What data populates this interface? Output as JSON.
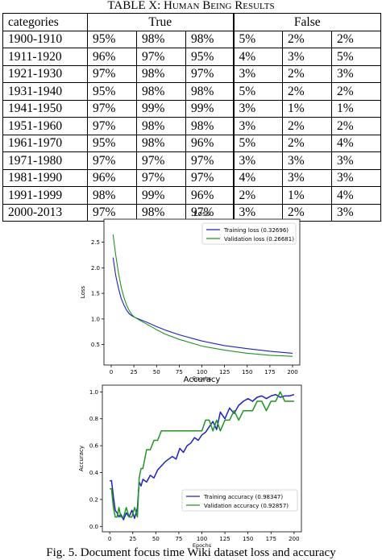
{
  "table": {
    "caption": "TABLE X: Human Being Results",
    "header": [
      "categories",
      "True",
      "False"
    ],
    "rows": [
      [
        "1900-1910",
        "95%",
        "98%",
        "98%",
        "5%",
        "2%",
        "2%"
      ],
      [
        "1911-1920",
        "96%",
        "97%",
        "95%",
        "4%",
        "3%",
        "5%"
      ],
      [
        "1921-1930",
        "97%",
        "98%",
        "97%",
        "3%",
        "2%",
        "3%"
      ],
      [
        "1931-1940",
        "95%",
        "98%",
        "98%",
        "5%",
        "2%",
        "2%"
      ],
      [
        "1941-1950",
        "97%",
        "99%",
        "99%",
        "3%",
        "1%",
        "1%"
      ],
      [
        "1951-1960",
        "97%",
        "98%",
        "98%",
        "3%",
        "2%",
        "2%"
      ],
      [
        "1961-1970",
        "95%",
        "98%",
        "96%",
        "5%",
        "2%",
        "4%"
      ],
      [
        "1971-1980",
        "97%",
        "97%",
        "97%",
        "3%",
        "3%",
        "3%"
      ],
      [
        "1981-1990",
        "96%",
        "97%",
        "97%",
        "4%",
        "3%",
        "3%"
      ],
      [
        "1991-1999",
        "98%",
        "99%",
        "96%",
        "2%",
        "1%",
        "4%"
      ],
      [
        "2000-2013",
        "97%",
        "98%",
        "97%",
        "3%",
        "2%",
        "3%"
      ]
    ]
  },
  "chart_data": [
    {
      "type": "line",
      "title": "Loss",
      "xlabel": "Epochs",
      "ylabel": "Loss",
      "xlim": [
        -8,
        208
      ],
      "ylim": [
        0.1,
        2.95
      ],
      "xticks": [
        0,
        25,
        50,
        75,
        100,
        125,
        150,
        175,
        200
      ],
      "yticks": [
        0.5,
        1.0,
        1.5,
        2.0,
        2.5
      ],
      "ytick_labels": [
        "0.5",
        "1.0",
        "1.5",
        "2.0",
        "2.5"
      ],
      "legend_position": "top-right",
      "series": [
        {
          "name": "Training loss (0.32696)",
          "color": "#1f1fd0",
          "x": [
            2,
            5,
            8,
            11,
            14,
            17,
            20,
            23,
            26,
            30,
            40,
            50,
            60,
            75,
            100,
            125,
            150,
            175,
            200
          ],
          "y": [
            2.2,
            1.85,
            1.6,
            1.4,
            1.27,
            1.17,
            1.1,
            1.06,
            1.03,
            1.0,
            0.93,
            0.85,
            0.78,
            0.69,
            0.57,
            0.48,
            0.42,
            0.37,
            0.33
          ]
        },
        {
          "name": "Validation loss (0.26681)",
          "color": "#1a9a1a",
          "x": [
            2,
            5,
            8,
            11,
            14,
            17,
            20,
            23,
            26,
            30,
            40,
            50,
            60,
            75,
            100,
            125,
            150,
            175,
            200
          ],
          "y": [
            2.65,
            2.25,
            1.9,
            1.62,
            1.42,
            1.27,
            1.16,
            1.08,
            1.03,
            0.99,
            0.89,
            0.79,
            0.7,
            0.6,
            0.47,
            0.39,
            0.33,
            0.29,
            0.27
          ]
        }
      ]
    },
    {
      "type": "line",
      "title": "Accuracy",
      "xlabel": "Epochs",
      "ylabel": "Accuracy",
      "xlim": [
        -8,
        208
      ],
      "ylim": [
        -0.04,
        1.05
      ],
      "xticks": [
        0,
        25,
        50,
        75,
        100,
        125,
        150,
        175,
        200
      ],
      "yticks": [
        0.0,
        0.2,
        0.4,
        0.6,
        0.8,
        1.0
      ],
      "ytick_labels": [
        "0.0",
        "0.2",
        "0.4",
        "0.6",
        "0.8",
        "1.0"
      ],
      "legend_position": "bottom-right",
      "series": [
        {
          "name": "Training accuracy (0.98347)",
          "color": "#1f1fd0",
          "x": [
            0,
            2,
            4,
            6,
            8,
            10,
            12,
            15,
            18,
            21,
            24,
            27,
            30,
            32,
            34,
            36,
            40,
            44,
            48,
            52,
            56,
            60,
            64,
            68,
            72,
            76,
            80,
            84,
            88,
            92,
            96,
            100,
            104,
            108,
            112,
            116,
            120,
            125,
            130,
            135,
            140,
            145,
            150,
            155,
            160,
            165,
            170,
            175,
            180,
            185,
            190,
            195,
            200
          ],
          "y": [
            0.34,
            0.34,
            0.22,
            0.12,
            0.1,
            0.07,
            0.09,
            0.05,
            0.1,
            0.07,
            0.12,
            0.06,
            0.14,
            0.33,
            0.3,
            0.35,
            0.33,
            0.38,
            0.36,
            0.42,
            0.45,
            0.48,
            0.5,
            0.52,
            0.5,
            0.58,
            0.55,
            0.6,
            0.62,
            0.66,
            0.64,
            0.68,
            0.7,
            0.74,
            0.78,
            0.72,
            0.85,
            0.8,
            0.88,
            0.84,
            0.9,
            0.93,
            0.95,
            0.93,
            0.96,
            0.97,
            0.95,
            0.97,
            0.98,
            0.96,
            0.97,
            0.97,
            0.98
          ]
        },
        {
          "name": "Validation accuracy (0.92857)",
          "color": "#1a9a1a",
          "x": [
            0,
            2,
            4,
            6,
            8,
            10,
            12,
            15,
            18,
            21,
            24,
            27,
            30,
            32,
            34,
            36,
            40,
            44,
            48,
            52,
            56,
            60,
            64,
            68,
            72,
            76,
            80,
            84,
            88,
            92,
            96,
            100,
            104,
            108,
            112,
            116,
            120,
            125,
            130,
            135,
            140,
            145,
            150,
            155,
            160,
            165,
            170,
            175,
            180,
            185,
            190,
            195,
            200
          ],
          "y": [
            0.28,
            0.28,
            0.14,
            0.07,
            0.07,
            0.14,
            0.07,
            0.07,
            0.14,
            0.07,
            0.07,
            0.14,
            0.07,
            0.36,
            0.43,
            0.43,
            0.57,
            0.57,
            0.64,
            0.64,
            0.71,
            0.71,
            0.71,
            0.71,
            0.71,
            0.71,
            0.71,
            0.71,
            0.71,
            0.71,
            0.71,
            0.71,
            0.79,
            0.79,
            0.71,
            0.79,
            0.71,
            0.79,
            0.79,
            0.86,
            0.79,
            0.86,
            0.86,
            0.86,
            0.93,
            0.93,
            0.86,
            0.93,
            0.93,
            1.0,
            0.93,
            0.93,
            0.93
          ]
        }
      ]
    }
  ],
  "figure_caption": "Fig. 5. Document focus time Wiki dataset loss and accuracy"
}
